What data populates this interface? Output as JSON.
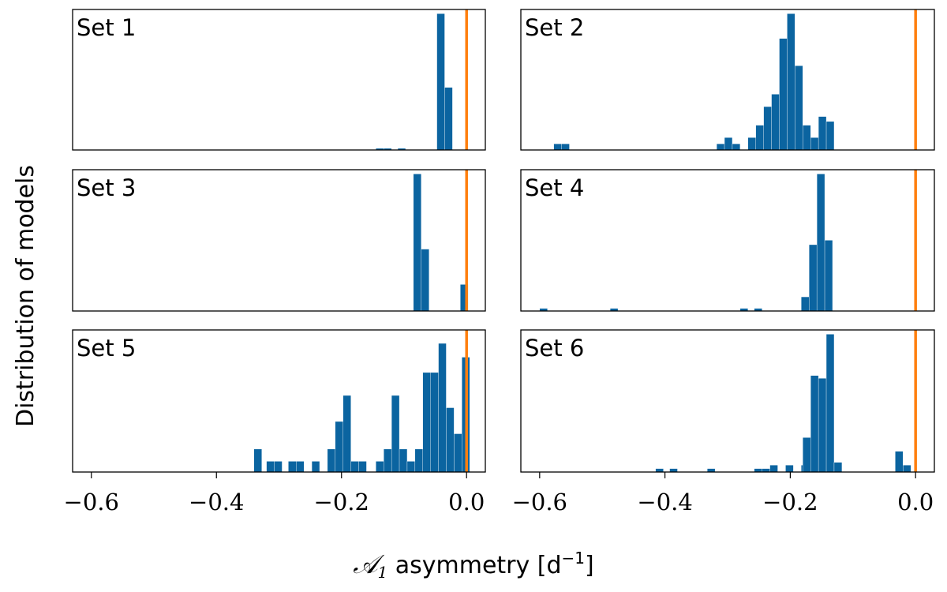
{
  "chart_data": {
    "type": "histogram",
    "layout": "3x2 grid of panels with shared x-axis",
    "xlabel_prefix": "𝒜",
    "xlabel_subscript": "1",
    "xlabel_text": " asymmetry [d",
    "xlabel_superscript": "−1",
    "xlabel_suffix": "]",
    "ylabel": "Distribution of models",
    "xlim": [
      -0.63,
      0.03
    ],
    "xticks": [
      -0.6,
      -0.4,
      -0.2,
      0.0
    ],
    "xtick_labels": [
      "−0.6",
      "−0.4",
      "−0.2",
      "0.0"
    ],
    "bin_width": 0.0125,
    "bar_color": "#0b64a0",
    "reference_line": {
      "x": 0.0,
      "color": "#ff7f0e"
    },
    "panels": [
      {
        "label": "Set 1",
        "ymax": 13.5,
        "bins": [
          {
            "x0": -0.145,
            "count": 0.16
          },
          {
            "x0": -0.1325,
            "count": 0.16
          },
          {
            "x0": -0.11,
            "count": 0.16
          },
          {
            "x0": -0.0475,
            "count": 13.5
          },
          {
            "x0": -0.035,
            "count": 6.2
          }
        ]
      },
      {
        "label": "Set 2",
        "ymax": 11.0,
        "bins": [
          {
            "x0": -0.5775,
            "count": 0.5
          },
          {
            "x0": -0.565,
            "count": 0.5
          },
          {
            "x0": -0.3175,
            "count": 0.5
          },
          {
            "x0": -0.305,
            "count": 1.0
          },
          {
            "x0": -0.2925,
            "count": 0.5
          },
          {
            "x0": -0.2675,
            "count": 1.0
          },
          {
            "x0": -0.255,
            "count": 2.0
          },
          {
            "x0": -0.2425,
            "count": 3.5
          },
          {
            "x0": -0.23,
            "count": 4.5
          },
          {
            "x0": -0.2175,
            "count": 9.0
          },
          {
            "x0": -0.205,
            "count": 11.0
          },
          {
            "x0": -0.1925,
            "count": 6.8
          },
          {
            "x0": -0.18,
            "count": 2.0
          },
          {
            "x0": -0.1675,
            "count": 1.0
          },
          {
            "x0": -0.155,
            "count": 2.7
          },
          {
            "x0": -0.1425,
            "count": 2.3
          }
        ]
      },
      {
        "label": "Set 3",
        "ymax": 15.5,
        "bins": [
          {
            "x0": -0.085,
            "count": 15.5
          },
          {
            "x0": -0.0725,
            "count": 7.0
          },
          {
            "x0": -0.01,
            "count": 3.0
          }
        ]
      },
      {
        "label": "Set 4",
        "ymax": 15.5,
        "bins": [
          {
            "x0": -0.6,
            "count": 0.3
          },
          {
            "x0": -0.4875,
            "count": 0.3
          },
          {
            "x0": -0.28,
            "count": 0.3
          },
          {
            "x0": -0.2575,
            "count": 0.3
          },
          {
            "x0": -0.1825,
            "count": 1.6
          },
          {
            "x0": -0.17,
            "count": 7.5
          },
          {
            "x0": -0.1575,
            "count": 15.5
          },
          {
            "x0": -0.145,
            "count": 8.0
          }
        ]
      },
      {
        "label": "Set 5",
        "ymax": 9.0,
        "bins": [
          {
            "x0": -0.34,
            "count": 1.5
          },
          {
            "x0": -0.32,
            "count": 0.7
          },
          {
            "x0": -0.3075,
            "count": 0.7
          },
          {
            "x0": -0.285,
            "count": 0.7
          },
          {
            "x0": -0.2725,
            "count": 0.7
          },
          {
            "x0": -0.2475,
            "count": 0.7
          },
          {
            "x0": -0.2225,
            "count": 1.5
          },
          {
            "x0": -0.21,
            "count": 3.3
          },
          {
            "x0": -0.1975,
            "count": 5.0
          },
          {
            "x0": -0.185,
            "count": 0.7
          },
          {
            "x0": -0.1725,
            "count": 0.7
          },
          {
            "x0": -0.145,
            "count": 0.7
          },
          {
            "x0": -0.1325,
            "count": 1.5
          },
          {
            "x0": -0.12,
            "count": 5.0
          },
          {
            "x0": -0.1075,
            "count": 1.5
          },
          {
            "x0": -0.095,
            "count": 0.7
          },
          {
            "x0": -0.0825,
            "count": 1.5
          },
          {
            "x0": -0.07,
            "count": 6.5
          },
          {
            "x0": -0.0575,
            "count": 6.5
          },
          {
            "x0": -0.045,
            "count": 8.4
          },
          {
            "x0": -0.0325,
            "count": 4.2
          },
          {
            "x0": -0.02,
            "count": 2.5
          },
          {
            "x0": -0.0075,
            "count": 7.5
          }
        ]
      },
      {
        "label": "Set 6",
        "ymax": 10.0,
        "bins": [
          {
            "x0": -0.415,
            "count": 0.25
          },
          {
            "x0": -0.3925,
            "count": 0.25
          },
          {
            "x0": -0.3325,
            "count": 0.25
          },
          {
            "x0": -0.2575,
            "count": 0.25
          },
          {
            "x0": -0.245,
            "count": 0.25
          },
          {
            "x0": -0.2325,
            "count": 0.5
          },
          {
            "x0": -0.2075,
            "count": 0.5
          },
          {
            "x0": -0.1825,
            "count": 0.5
          },
          {
            "x0": -0.18,
            "count": 2.5
          },
          {
            "x0": -0.1675,
            "count": 7.0
          },
          {
            "x0": -0.155,
            "count": 6.8
          },
          {
            "x0": -0.1425,
            "count": 10.0
          },
          {
            "x0": -0.13,
            "count": 0.7
          },
          {
            "x0": -0.0325,
            "count": 1.5
          },
          {
            "x0": -0.02,
            "count": 0.5
          }
        ]
      }
    ]
  }
}
